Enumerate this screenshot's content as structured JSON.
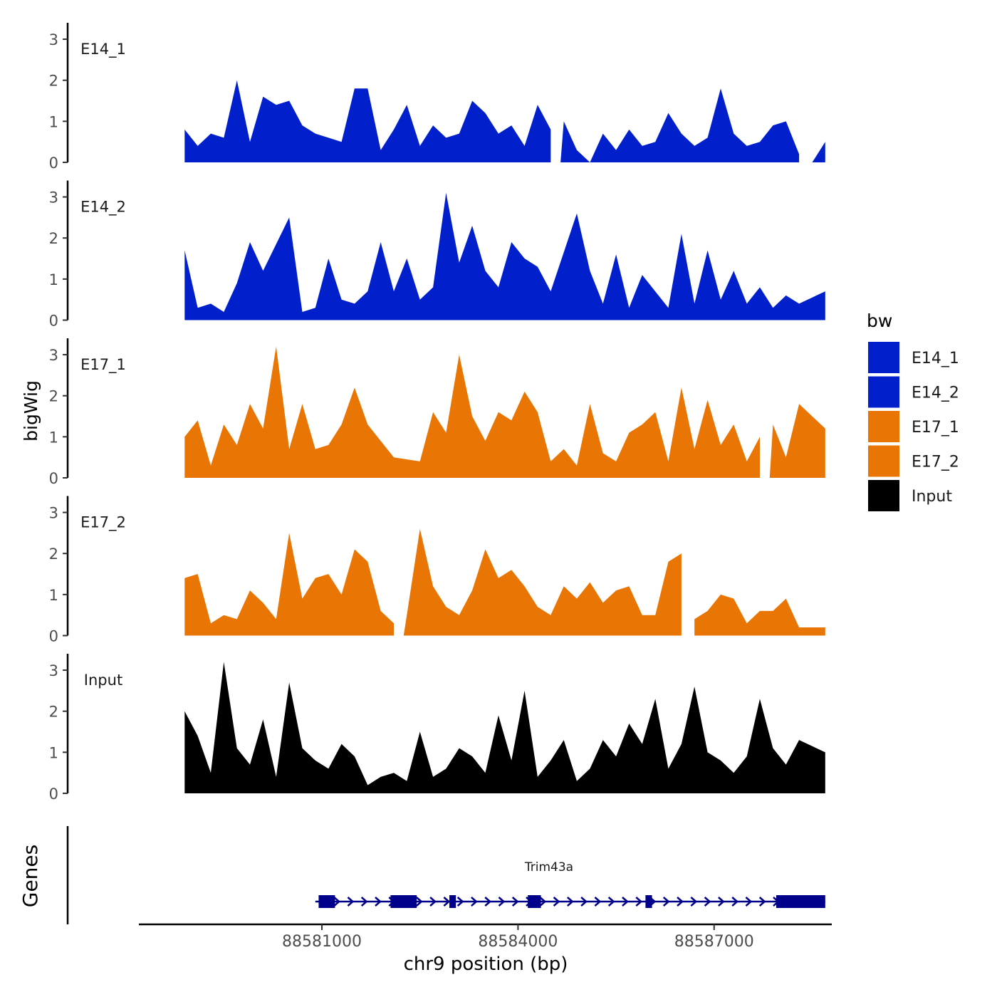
{
  "chart_data": {
    "type": "area",
    "title": "",
    "xlabel": "chr9 position (bp)",
    "ylabel": "bigWig",
    "genes_label": "Genes",
    "xlim": [
      88578200,
      88588800
    ],
    "xticks": [
      88581000,
      88584000,
      88587000
    ],
    "xtick_labels": [
      "88581000",
      "88584000",
      "88587000"
    ],
    "ylim": [
      0,
      3.4
    ],
    "yticks": [
      0,
      1,
      2,
      3
    ],
    "ytick_labels": [
      "0",
      "1",
      "2",
      "3"
    ],
    "grid": false,
    "legend": {
      "title": "bw",
      "position": "right",
      "entries": [
        {
          "label": "E14_1",
          "color": "#0120CC"
        },
        {
          "label": "E14_2",
          "color": "#0120CC"
        },
        {
          "label": "E17_1",
          "color": "#E87504"
        },
        {
          "label": "E17_2",
          "color": "#E87504"
        },
        {
          "label": "Input",
          "color": "#000000"
        }
      ]
    },
    "series": [
      {
        "name": "E14_1",
        "color": "#0120CC",
        "x": [
          88578900,
          88579100,
          88579300,
          88579500,
          88579700,
          88579900,
          88580100,
          88580300,
          88580500,
          88580700,
          88580900,
          88581100,
          88581300,
          88581500,
          88581700,
          88581900,
          88582100,
          88582300,
          88582500,
          88582700,
          88582900,
          88583100,
          88583300,
          88583500,
          88583700,
          88583900,
          88584100,
          88584300,
          88584500,
          88584700,
          88584900,
          88585100,
          88585300,
          88585500,
          88585700,
          88585900,
          88586100,
          88586300,
          88586500,
          88586700,
          88586900,
          88587100,
          88587300,
          88587500,
          88587700,
          88587900,
          88588100,
          88588300,
          88588700
        ],
        "values": [
          0.8,
          0.4,
          0.7,
          0.6,
          2.0,
          0.5,
          1.6,
          1.4,
          1.5,
          0.9,
          0.7,
          0.6,
          0.5,
          1.8,
          1.8,
          0.3,
          0.8,
          1.4,
          0.4,
          0.9,
          0.6,
          0.7,
          1.5,
          1.2,
          0.7,
          0.9,
          0.4,
          1.4,
          0.8,
          1.0,
          0.3,
          0.0,
          0.7,
          0.3,
          0.8,
          0.4,
          0.5,
          1.2,
          0.7,
          0.4,
          0.6,
          1.8,
          0.7,
          0.4,
          0.5,
          0.9,
          1.0,
          0.2,
          0.5
        ],
        "gaps": [
          [
            88584500,
            88584650
          ],
          [
            88588300,
            88588500
          ]
        ]
      },
      {
        "name": "E14_2",
        "color": "#0120CC",
        "x": [
          88578900,
          88579100,
          88579300,
          88579500,
          88579700,
          88579900,
          88580100,
          88580300,
          88580500,
          88580700,
          88580900,
          88581100,
          88581300,
          88581500,
          88581700,
          88581900,
          88582100,
          88582300,
          88582500,
          88582700,
          88582900,
          88583100,
          88583300,
          88583500,
          88583700,
          88583900,
          88584100,
          88584300,
          88584500,
          88584700,
          88584900,
          88585100,
          88585300,
          88585500,
          88585700,
          88585900,
          88586100,
          88586300,
          88586500,
          88586700,
          88586900,
          88587100,
          88587300,
          88587500,
          88587700,
          88587900,
          88588100,
          88588300,
          88588700
        ],
        "values": [
          1.7,
          0.3,
          0.4,
          0.2,
          0.9,
          1.9,
          1.2,
          0.6,
          2.5,
          0.2,
          0.3,
          1.5,
          0.5,
          0.4,
          0.7,
          1.9,
          0.7,
          1.5,
          0.5,
          0.8,
          3.1,
          1.4,
          2.3,
          1.2,
          0.8,
          1.9,
          1.5,
          1.3,
          0.7,
          0.4,
          2.6,
          1.2,
          0.4,
          1.6,
          0.3,
          1.1,
          0.5,
          0.3,
          2.1,
          0.4,
          1.7,
          0.5,
          1.2,
          0.4,
          0.8,
          0.3,
          0.6,
          0.4,
          0.7
        ],
        "gaps": [
          [
            88580200,
            88580350
          ],
          [
            88584600,
            88584750
          ],
          [
            88586000,
            88586150
          ]
        ]
      },
      {
        "name": "E17_1",
        "color": "#E87504",
        "x": [
          88578900,
          88579100,
          88579300,
          88579500,
          88579700,
          88579900,
          88580100,
          88580300,
          88580500,
          88580700,
          88580900,
          88581100,
          88581300,
          88581500,
          88581700,
          88581900,
          88582100,
          88582300,
          88582500,
          88582700,
          88582900,
          88583100,
          88583300,
          88583500,
          88583700,
          88583900,
          88584100,
          88584300,
          88584500,
          88584700,
          88584900,
          88585100,
          88585300,
          88585500,
          88585700,
          88585900,
          88586100,
          88586300,
          88586500,
          88586700,
          88586900,
          88587100,
          88587300,
          88587500,
          88587700,
          88587900,
          88588100,
          88588300,
          88588700
        ],
        "values": [
          1.0,
          1.4,
          0.3,
          1.3,
          0.8,
          1.8,
          1.2,
          3.2,
          0.7,
          1.8,
          0.7,
          0.8,
          1.3,
          2.2,
          1.3,
          0.9,
          0.5,
          1.4,
          0.4,
          1.6,
          1.1,
          3.0,
          1.5,
          0.9,
          1.6,
          1.4,
          2.1,
          1.6,
          0.4,
          0.7,
          0.3,
          1.8,
          0.6,
          0.4,
          1.1,
          1.3,
          1.6,
          0.4,
          2.2,
          0.7,
          1.9,
          0.8,
          1.3,
          0.4,
          1.0,
          1.3,
          0.5,
          1.8,
          1.2
        ],
        "gaps": [
          [
            88582200,
            88582350
          ],
          [
            88587700,
            88587850
          ]
        ]
      },
      {
        "name": "E17_2",
        "color": "#E87504",
        "x": [
          88578900,
          88579100,
          88579300,
          88579500,
          88579700,
          88579900,
          88580100,
          88580300,
          88580500,
          88580700,
          88580900,
          88581100,
          88581300,
          88581500,
          88581700,
          88581900,
          88582100,
          88582300,
          88582500,
          88582700,
          88582900,
          88583100,
          88583300,
          88583500,
          88583700,
          88583900,
          88584100,
          88584300,
          88584500,
          88584700,
          88584900,
          88585100,
          88585300,
          88585500,
          88585700,
          88585900,
          88586100,
          88586300,
          88586500,
          88586700,
          88586900,
          88587100,
          88587300,
          88587500,
          88587700,
          88587900,
          88588100,
          88588300,
          88588700
        ],
        "values": [
          1.4,
          1.5,
          0.3,
          0.5,
          0.4,
          1.1,
          0.8,
          0.4,
          2.5,
          0.9,
          1.4,
          1.5,
          1.0,
          2.1,
          1.8,
          0.6,
          0.3,
          0.5,
          2.6,
          1.2,
          0.7,
          0.5,
          1.1,
          2.1,
          1.4,
          1.6,
          1.2,
          0.7,
          0.5,
          1.2,
          0.9,
          1.3,
          0.8,
          1.1,
          1.2,
          0.5,
          0.5,
          1.8,
          2.0,
          0.4,
          0.6,
          1.0,
          0.9,
          0.3,
          0.6,
          0.6,
          0.9,
          0.2,
          0.2
        ],
        "gaps": [
          [
            88582100,
            88582250
          ],
          [
            88586500,
            88586700
          ]
        ]
      },
      {
        "name": "Input",
        "color": "#000000",
        "x": [
          88578900,
          88579100,
          88579300,
          88579500,
          88579700,
          88579900,
          88580100,
          88580300,
          88580500,
          88580700,
          88580900,
          88581100,
          88581300,
          88581500,
          88581700,
          88581900,
          88582100,
          88582300,
          88582500,
          88582700,
          88582900,
          88583100,
          88583300,
          88583500,
          88583700,
          88583900,
          88584100,
          88584300,
          88584500,
          88584700,
          88584900,
          88585100,
          88585300,
          88585500,
          88585700,
          88585900,
          88586100,
          88586300,
          88586500,
          88586700,
          88586900,
          88587100,
          88587300,
          88587500,
          88587700,
          88587900,
          88588100,
          88588300,
          88588700
        ],
        "values": [
          2.0,
          1.4,
          0.5,
          3.2,
          1.1,
          0.7,
          1.8,
          0.4,
          2.7,
          1.1,
          0.8,
          0.6,
          1.2,
          0.9,
          0.2,
          0.4,
          0.5,
          0.3,
          1.5,
          0.4,
          0.6,
          1.1,
          0.9,
          0.5,
          1.9,
          0.8,
          2.5,
          0.4,
          0.8,
          1.3,
          0.3,
          0.6,
          1.3,
          0.9,
          1.7,
          1.2,
          2.3,
          0.6,
          1.2,
          2.6,
          1.0,
          0.8,
          0.5,
          0.9,
          2.3,
          1.1,
          0.7,
          1.3,
          1.0
        ],
        "gaps": []
      }
    ],
    "gene": {
      "name": "Trim43a",
      "strand": "+",
      "start": 88580900,
      "end": 88588700,
      "exons": [
        [
          88580950,
          88581200
        ],
        [
          88582050,
          88582450
        ],
        [
          88582950,
          88583050
        ],
        [
          88584150,
          88584350
        ],
        [
          88585950,
          88586050
        ],
        [
          88587950,
          88588700
        ]
      ]
    }
  }
}
